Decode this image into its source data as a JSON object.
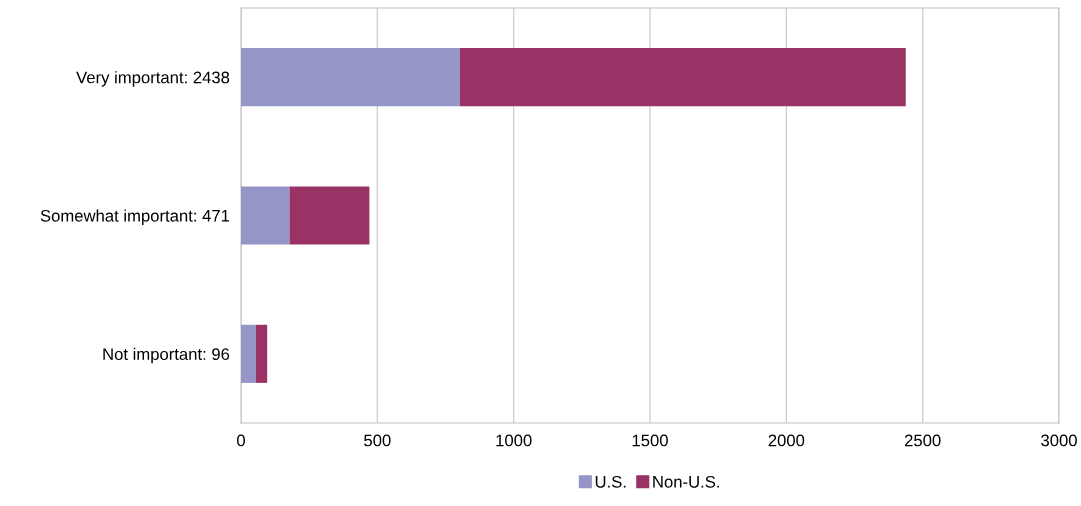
{
  "chart_data": {
    "type": "bar",
    "orientation": "horizontal",
    "stacked": true,
    "categories": [
      "Very important: 2438",
      "Somewhat important: 471",
      "Not important: 96"
    ],
    "series": [
      {
        "name": "U.S.",
        "color": "#9595c8",
        "values": [
          803,
          178,
          55
        ]
      },
      {
        "name": "Non-U.S.",
        "color": "#993366",
        "values": [
          1635,
          293,
          41
        ]
      }
    ],
    "xlim": [
      0,
      3000
    ],
    "xticks": [
      0,
      500,
      1000,
      1500,
      2000,
      2500,
      3000
    ],
    "grid": "x",
    "legend": "bottom"
  }
}
